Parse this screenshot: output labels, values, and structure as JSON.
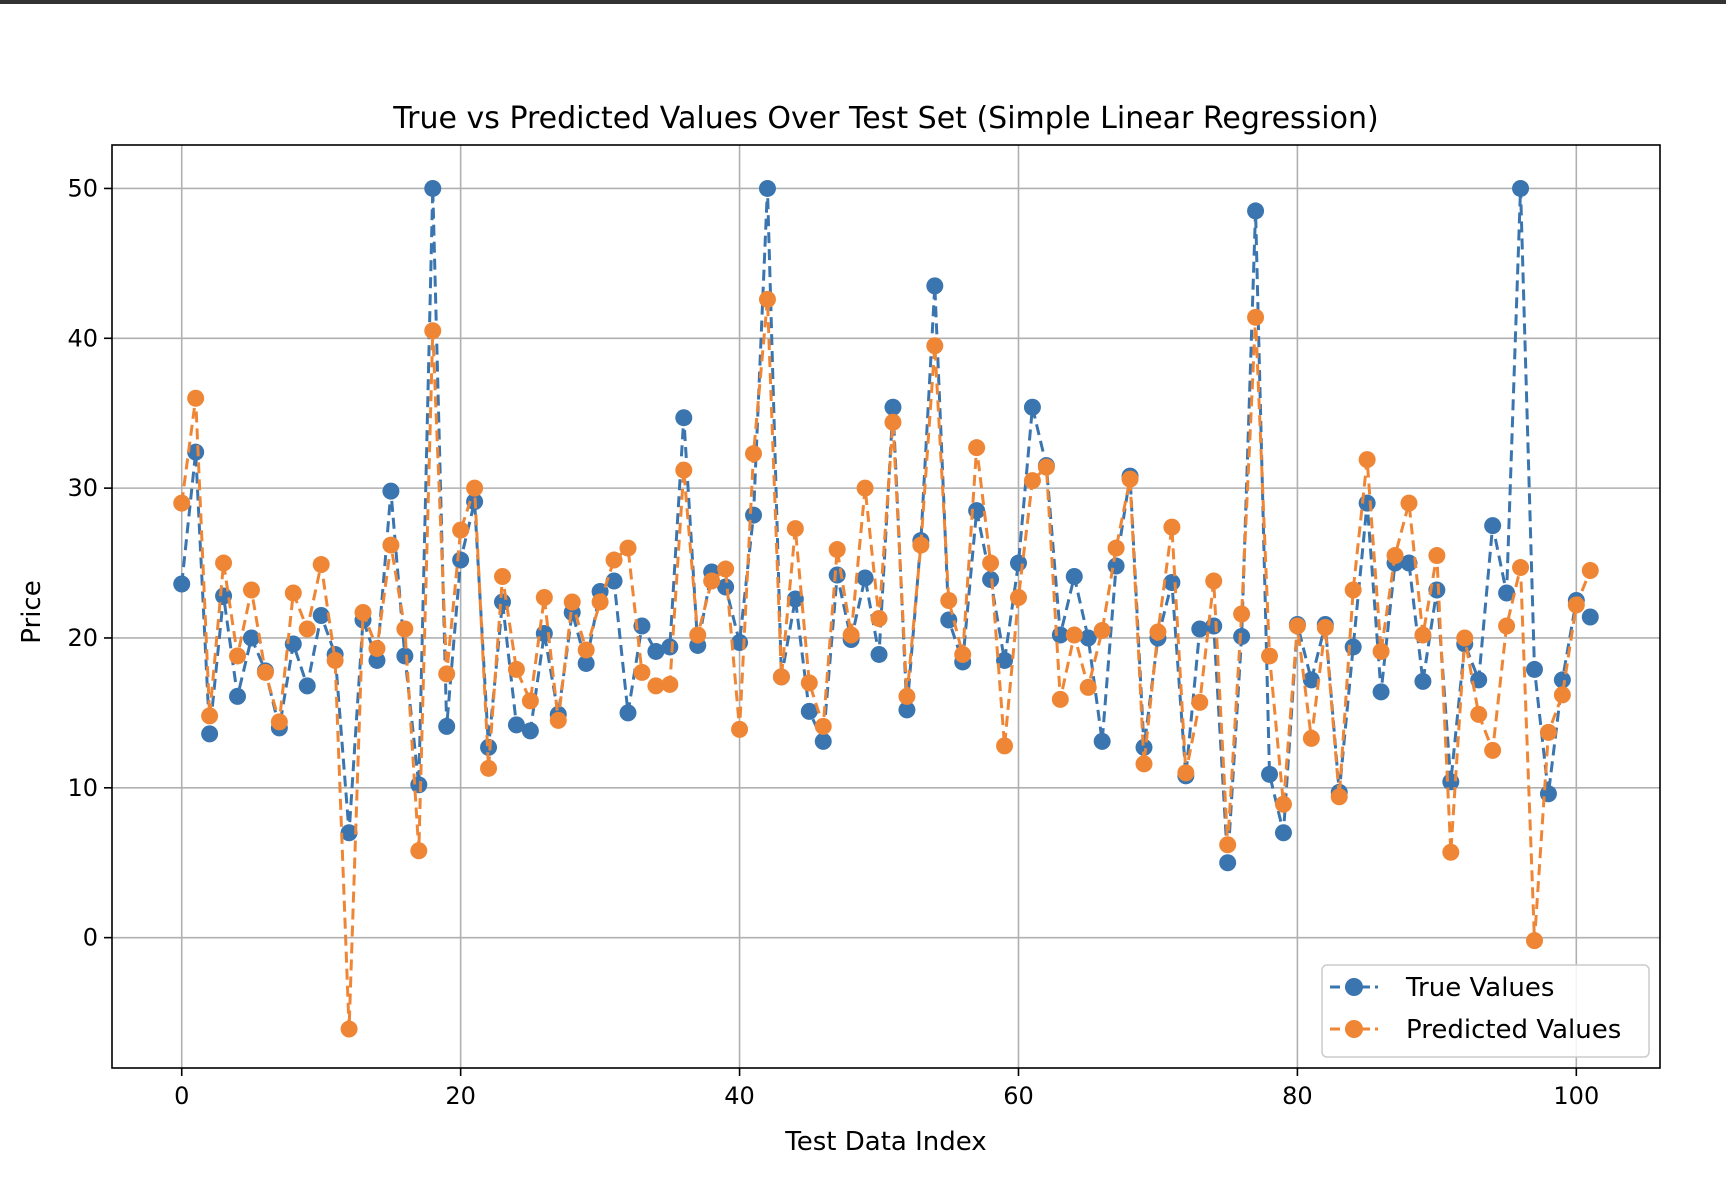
{
  "chart_data": {
    "type": "line",
    "title": "True vs Predicted Values Over Test Set (Simple Linear Regression)",
    "xlabel": "Test Data Index",
    "ylabel": "Price",
    "xlim": [
      -5,
      106
    ],
    "ylim": [
      -8.7,
      52.9
    ],
    "xticks": [
      0,
      20,
      40,
      60,
      80,
      100
    ],
    "yticks": [
      0,
      10,
      20,
      30,
      40,
      50
    ],
    "grid": true,
    "legend_position": "bottom-right",
    "series": [
      {
        "name": "True Values",
        "color": "#3a75af",
        "style": "dashed",
        "marker": "circle",
        "values": [
          23.6,
          32.4,
          13.6,
          22.8,
          16.1,
          20.0,
          17.8,
          14.0,
          19.6,
          16.8,
          21.5,
          18.9,
          7.0,
          21.2,
          18.5,
          29.8,
          18.8,
          10.2,
          50.0,
          14.1,
          25.2,
          29.1,
          12.7,
          22.4,
          14.2,
          13.8,
          20.3,
          14.9,
          21.7,
          18.3,
          23.1,
          23.8,
          15.0,
          20.8,
          19.1,
          19.4,
          34.7,
          19.5,
          24.4,
          23.4,
          19.7,
          28.2,
          50.0,
          17.4,
          22.6,
          15.1,
          13.1,
          24.2,
          19.9,
          24.0,
          18.9,
          35.4,
          15.2,
          26.5,
          43.5,
          21.2,
          18.4,
          28.5,
          23.9,
          18.5,
          25.0,
          35.4,
          31.5,
          20.2,
          24.1,
          20.0,
          13.1,
          24.8,
          30.8,
          12.7,
          20.0,
          23.7,
          10.8,
          20.6,
          20.8,
          5.0,
          20.1,
          48.5,
          10.9,
          7.0,
          20.9,
          17.2,
          20.9,
          9.7,
          19.4,
          29.0,
          16.4,
          25.0,
          25.0,
          17.1,
          23.2,
          10.4,
          19.6,
          17.2,
          27.5,
          23.0,
          50.0,
          17.9,
          9.6,
          17.2,
          22.5,
          21.4
        ]
      },
      {
        "name": "Predicted Values",
        "color": "#ef8636",
        "style": "dashed",
        "marker": "circle",
        "values": [
          29.0,
          36.0,
          14.8,
          25.0,
          18.8,
          23.2,
          17.7,
          14.4,
          23.0,
          20.6,
          24.9,
          18.5,
          -6.1,
          21.7,
          19.3,
          26.2,
          20.6,
          5.8,
          40.5,
          17.6,
          27.2,
          30.0,
          11.3,
          24.1,
          17.9,
          15.8,
          22.7,
          14.5,
          22.4,
          19.2,
          22.4,
          25.2,
          26.0,
          17.7,
          16.8,
          16.9,
          31.2,
          20.2,
          23.8,
          24.6,
          13.9,
          32.3,
          42.6,
          17.4,
          27.3,
          17.0,
          14.1,
          25.9,
          20.2,
          30.0,
          21.3,
          34.4,
          16.1,
          26.2,
          39.5,
          22.5,
          18.9,
          32.7,
          25.0,
          12.8,
          22.7,
          30.5,
          31.4,
          15.9,
          20.2,
          16.7,
          20.5,
          26.0,
          30.6,
          11.6,
          20.4,
          27.4,
          11.0,
          15.7,
          23.8,
          6.2,
          21.6,
          41.4,
          18.8,
          8.9,
          20.8,
          13.3,
          20.7,
          9.4,
          23.2,
          31.9,
          19.1,
          25.5,
          29.0,
          20.2,
          25.5,
          5.7,
          20.0,
          14.9,
          12.5,
          20.8,
          24.7,
          -0.2,
          13.7,
          16.2,
          22.2,
          24.5
        ]
      }
    ]
  }
}
